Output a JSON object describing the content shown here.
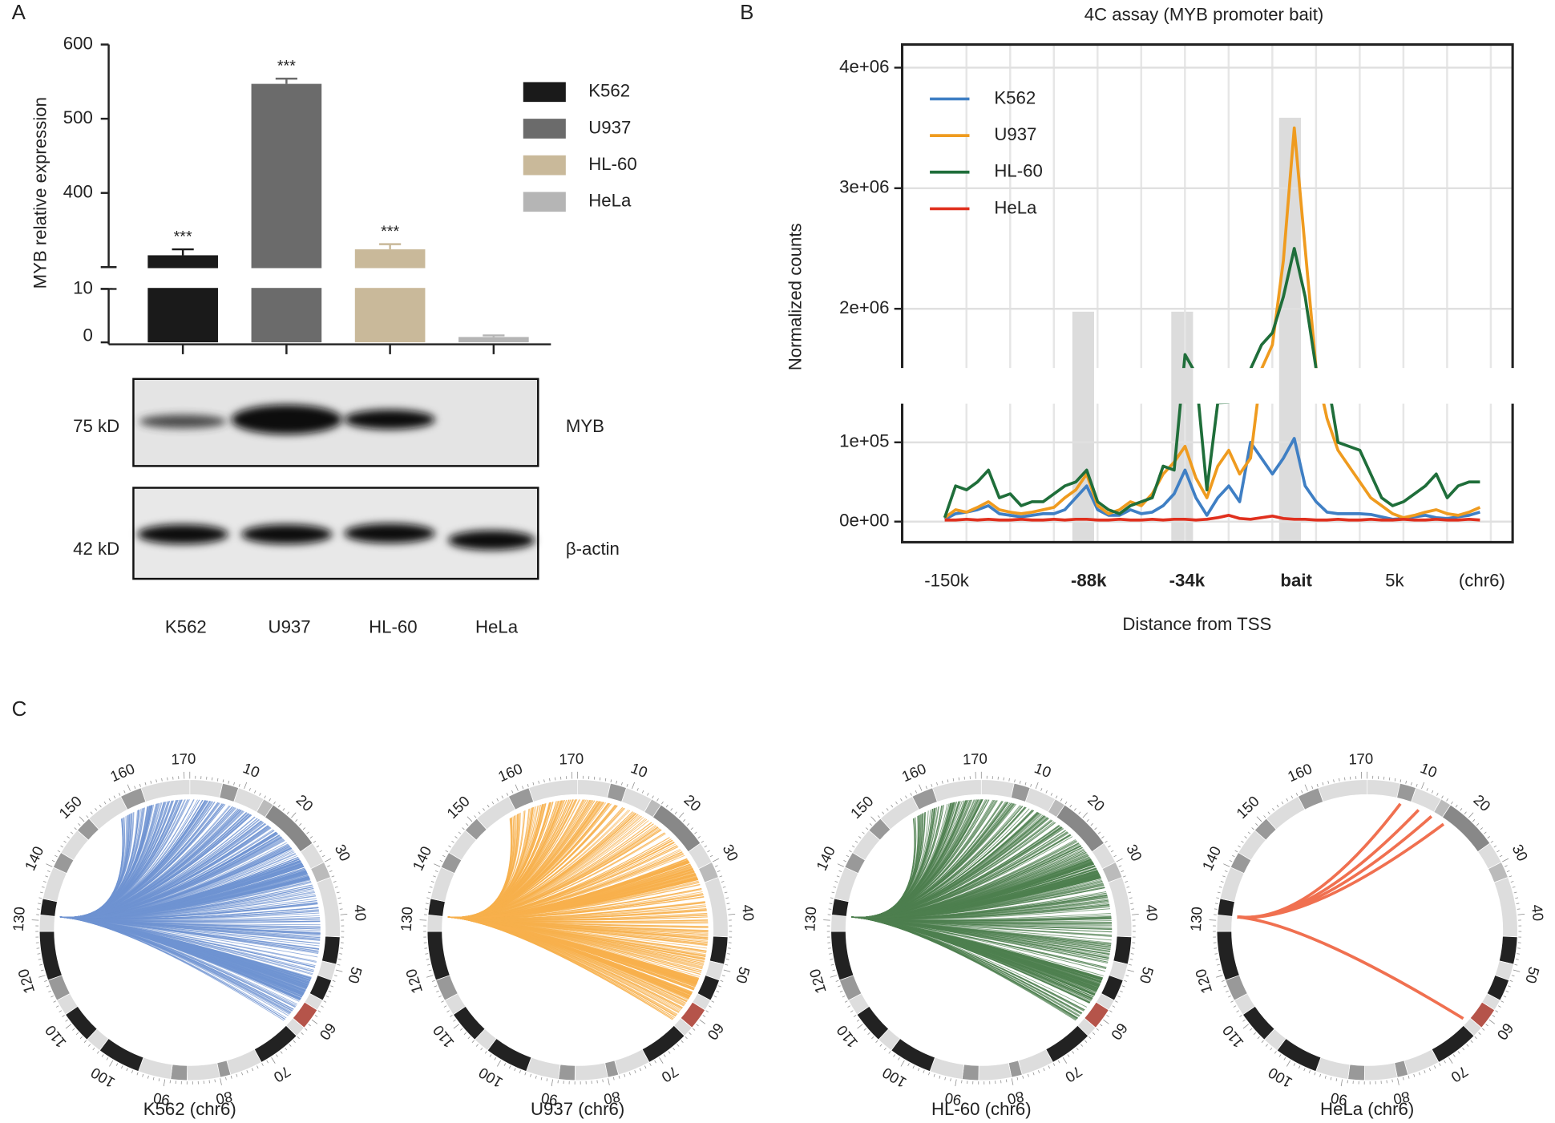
{
  "panels": [
    "A",
    "B",
    "C"
  ],
  "chart_data": [
    {
      "type": "bar",
      "ylabel": "MYB relative expression",
      "categories": [
        "K562",
        "U937",
        "HL-60",
        "HeLa"
      ],
      "values": [
        316,
        547,
        324,
        1
      ],
      "errors": [
        8,
        7,
        7,
        0.3
      ],
      "annotations": [
        "***",
        "***",
        "***",
        null
      ],
      "colors": [
        "#1a1a1a",
        "#6b6b6b",
        "#c9b99a",
        "#b5b5b5"
      ],
      "ylim": [
        0,
        600
      ],
      "axis_break": [
        10,
        300
      ],
      "yticks": [
        0,
        10,
        400,
        500,
        600
      ],
      "legend": "upper right"
    },
    {
      "type": "line",
      "title": "4C assay (MYB promoter bait)",
      "xlabel": "Distance from TSS",
      "ylabel": "Normalized counts",
      "categories": [
        "-150k",
        null,
        null,
        null,
        null,
        null,
        null,
        null,
        null,
        null,
        null,
        null,
        null,
        "-88k",
        null,
        null,
        null,
        null,
        null,
        null,
        null,
        null,
        "-34k",
        null,
        null,
        null,
        null,
        null,
        null,
        null,
        null,
        null,
        "bait",
        null,
        null,
        null,
        null,
        null,
        null,
        null,
        null,
        "5k",
        null,
        null,
        null,
        null,
        null,
        null,
        null,
        "(chr6)"
      ],
      "series": [
        {
          "name": "K562",
          "color": "#3f7fc4",
          "values": [
            3000,
            10000,
            12000,
            15000,
            20000,
            10000,
            8000,
            6000,
            8000,
            10000,
            10000,
            15000,
            30000,
            45000,
            15000,
            8000,
            8000,
            15000,
            10000,
            12000,
            20000,
            35000,
            65000,
            30000,
            8000,
            30000,
            45000,
            25000,
            100000,
            80000,
            60000,
            80000,
            105000,
            45000,
            25000,
            12000,
            10000,
            10000,
            10000,
            9000,
            6000,
            3000,
            4000,
            6000,
            8000,
            5000,
            4000,
            6000,
            8000,
            12000
          ]
        },
        {
          "name": "U937",
          "color": "#ef9b1f",
          "values": [
            5000,
            15000,
            12000,
            18000,
            25000,
            15000,
            12000,
            10000,
            12000,
            15000,
            18000,
            30000,
            40000,
            60000,
            20000,
            10000,
            15000,
            25000,
            20000,
            35000,
            60000,
            75000,
            95000,
            55000,
            30000,
            70000,
            90000,
            60000,
            80000,
            1500000,
            1700000,
            2400000,
            3500000,
            2500000,
            1500000,
            130000,
            90000,
            70000,
            50000,
            30000,
            20000,
            10000,
            5000,
            8000,
            12000,
            15000,
            10000,
            8000,
            12000,
            18000
          ]
        },
        {
          "name": "HL-60",
          "color": "#1f6e3a",
          "values": [
            5000,
            45000,
            40000,
            50000,
            65000,
            30000,
            35000,
            20000,
            25000,
            25000,
            35000,
            45000,
            50000,
            65000,
            25000,
            15000,
            10000,
            20000,
            25000,
            30000,
            70000,
            65000,
            1620000,
            1300000,
            40000,
            150000,
            160000,
            1000000,
            1500000,
            1700000,
            1800000,
            2100000,
            2500000,
            2100000,
            1500000,
            1200000,
            100000,
            95000,
            90000,
            60000,
            30000,
            20000,
            25000,
            35000,
            45000,
            60000,
            30000,
            45000,
            50000,
            50000
          ]
        },
        {
          "name": "HeLa",
          "color": "#e0301e",
          "values": [
            2000,
            2000,
            3000,
            2000,
            3000,
            2000,
            2000,
            3000,
            2000,
            2000,
            3000,
            2000,
            3000,
            3000,
            2000,
            2000,
            3000,
            2000,
            2000,
            3000,
            2000,
            3000,
            3000,
            2000,
            3000,
            5000,
            8000,
            4000,
            3000,
            5000,
            7000,
            4000,
            3000,
            3000,
            2000,
            2000,
            3000,
            2000,
            2000,
            3000,
            2000,
            2000,
            3000,
            2000,
            2000,
            3000,
            2000,
            2000,
            3000,
            2000
          ]
        }
      ],
      "ylim": [
        -26000,
        4200000
      ],
      "axis_break": [
        150000,
        1500000
      ],
      "yticks": [
        {
          "value": 0,
          "label": "0e+00"
        },
        {
          "value": 100000,
          "label": "1e+05"
        },
        {
          "value": 2000000,
          "label": "2e+06"
        },
        {
          "value": 3000000,
          "label": "3e+06"
        },
        {
          "value": 4000000,
          "label": "4e+06"
        }
      ],
      "grid": true,
      "legend": "upper left"
    }
  ],
  "blot": {
    "bands": [
      {
        "size": "75 kD",
        "protein": "MYB"
      },
      {
        "size": "42 kD",
        "protein": "β-actin"
      }
    ]
  },
  "circos": {
    "ticks": [
      10,
      20,
      30,
      40,
      50,
      60,
      70,
      80,
      90,
      100,
      110,
      120,
      130,
      140,
      150,
      160,
      170
    ],
    "plots": [
      {
        "label": "K562 (chr6)",
        "color": "#6f93d2"
      },
      {
        "label": "U937 (chr6)",
        "color": "#f7b04c"
      },
      {
        "label": "HL-60 (chr6)",
        "color": "#4e7f4f"
      },
      {
        "label": "HeLa (chr6)",
        "color": "#f07050"
      }
    ]
  }
}
